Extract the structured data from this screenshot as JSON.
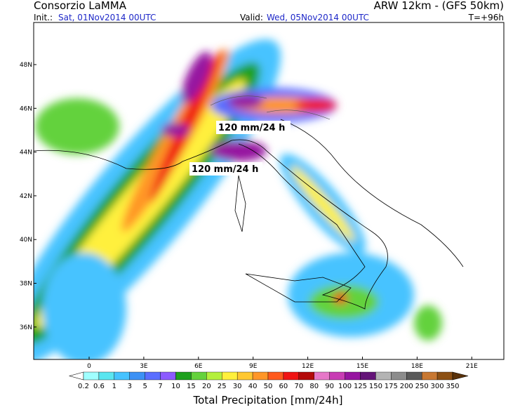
{
  "header": {
    "title": "Consorzio LaMMA",
    "model": "ARW 12km - (GFS 50km)",
    "init_label": "Init.:",
    "init_time": "Sat, 01Nov2014 00UTC",
    "valid_label": "Valid:",
    "valid_time": "Wed, 05Nov2014 00UTC",
    "lead_time": "T=+96h"
  },
  "map": {
    "lat_labels": [
      "48N",
      "46N",
      "44N",
      "42N",
      "40N",
      "38N",
      "36N"
    ],
    "lon_labels": [
      "0",
      "3E",
      "6E",
      "9E",
      "12E",
      "15E",
      "18E",
      "21E"
    ],
    "annotations": [
      "120 mm/24 h",
      "120 mm/24 h"
    ]
  },
  "legend": {
    "title": "Total Precipitation [mm/24h]",
    "levels": [
      0.2,
      0.6,
      1,
      3,
      5,
      7,
      10,
      15,
      20,
      25,
      30,
      40,
      50,
      60,
      70,
      80,
      90,
      100,
      125,
      150,
      175,
      200,
      250,
      300,
      350
    ],
    "colors": [
      "#ffffff",
      "#a0ffff",
      "#5ae6f0",
      "#46c3ff",
      "#3c91f5",
      "#5a6eff",
      "#8c5aff",
      "#1ea01e",
      "#64d23c",
      "#b4f03c",
      "#fff03c",
      "#ffc832",
      "#ff9628",
      "#ff5a1e",
      "#f01414",
      "#b40a0a",
      "#e678c8",
      "#c83cb4",
      "#9614a0",
      "#641478",
      "#b4b4b4",
      "#8c8c8c",
      "#5a5a5a",
      "#c87832",
      "#8c5014",
      "#5a320a"
    ]
  }
}
